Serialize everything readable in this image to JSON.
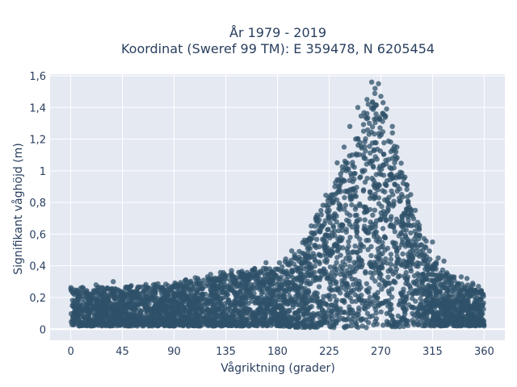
{
  "chart_data": {
    "type": "scatter",
    "title_line1": "År 1979 - 2019",
    "title_line2": "Koordinat (Sweref 99 TM): E 359478, N 6205454",
    "xlabel": "Vågriktning (grader)",
    "ylabel": "Signifikant våghöjd (m)",
    "xlim": [
      -18,
      378
    ],
    "ylim": [
      -0.07,
      1.61
    ],
    "xticks": [
      0,
      45,
      90,
      135,
      180,
      225,
      270,
      315,
      360
    ],
    "xtick_labels": [
      "0",
      "45",
      "90",
      "135",
      "180",
      "225",
      "270",
      "315",
      "360"
    ],
    "yticks": [
      0,
      0.2,
      0.4,
      0.6,
      0.8,
      1,
      1.2,
      1.4,
      1.6
    ],
    "ytick_labels": [
      "0",
      "0,2",
      "0,4",
      "0,6",
      "0,8",
      "1",
      "1,2",
      "1,4",
      "1,6"
    ],
    "grid": true,
    "colors": {
      "marker": "#2f5169",
      "plot_bg": "#e5e9f2",
      "grid": "#ffffff",
      "text": "#2a3f5f"
    },
    "envelope": {
      "description_x": [
        0,
        45,
        90,
        135,
        180,
        200,
        225,
        250,
        265,
        280,
        300,
        315,
        340,
        360
      ],
      "upper_y": [
        0.27,
        0.28,
        0.3,
        0.37,
        0.42,
        0.55,
        0.9,
        1.3,
        1.57,
        1.28,
        0.75,
        0.45,
        0.3,
        0.26
      ],
      "lower_y": [
        0.02,
        0.02,
        0.02,
        0.02,
        0.02,
        0.01,
        0.01,
        0.01,
        0.01,
        0.01,
        0.02,
        0.02,
        0.02,
        0.02
      ]
    },
    "series": [
      {
        "x": [
          262,
          268,
          265,
          270,
          258,
          263,
          259,
          275,
          272,
          250,
          266,
          280,
          248,
          245,
          260,
          284,
          255,
          282,
          240,
          235,
          290,
          230,
          300,
          296,
          315,
          320,
          325,
          243,
          238,
          232,
          22,
          37,
          65,
          100,
          150,
          160,
          170,
          180,
          120,
          130,
          140,
          340,
          345,
          350,
          355
        ],
        "y": [
          1.56,
          1.55,
          1.52,
          1.47,
          1.45,
          1.43,
          1.42,
          1.39,
          1.36,
          1.4,
          1.33,
          1.28,
          1.2,
          1.1,
          1.3,
          1.15,
          1.25,
          1.05,
          1.0,
          0.98,
          0.95,
          0.9,
          0.75,
          0.85,
          0.55,
          0.45,
          0.43,
          1.28,
          1.15,
          1.05,
          0.28,
          0.3,
          0.27,
          0.31,
          0.35,
          0.38,
          0.42,
          0.38,
          0.31,
          0.33,
          0.37,
          0.33,
          0.32,
          0.29,
          0.27
        ]
      }
    ]
  }
}
